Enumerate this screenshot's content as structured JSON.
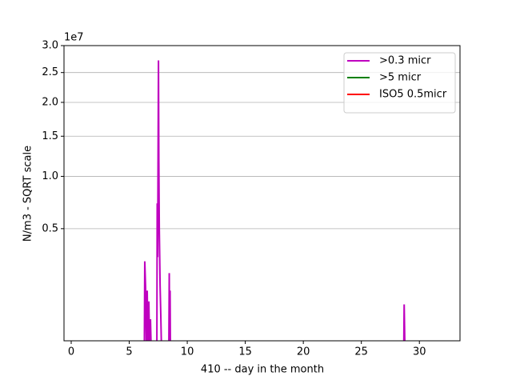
{
  "chart_data": {
    "type": "line",
    "xlabel": "410 -- day in the month",
    "ylabel": "N/m3 - SQRT scale",
    "offset_label": "1e7",
    "yscale": "sqrt",
    "grid": true,
    "legend": "upper right",
    "xlim": [
      -0.62,
      33.5
    ],
    "xticks": [
      0,
      5,
      10,
      15,
      20,
      25,
      30
    ],
    "ylim": [
      0.0063,
      3.0
    ],
    "yticks": [
      0.5,
      {
        "value": 1,
        "label": "1.0"
      },
      1.5,
      {
        "value": 2,
        "label": "2.0"
      },
      2.5,
      {
        "value": 3,
        "label": "3.0"
      }
    ],
    "series": [
      {
        "name": ">0.3 micr",
        "color": "#bf00bf",
        "x": [
          6.3,
          6.34,
          6.41,
          6.48,
          6.55,
          6.62,
          6.69,
          6.76,
          6.83,
          6.9,
          7.38,
          7.41,
          7.45,
          7.52,
          7.55,
          7.59,
          7.66,
          7.72,
          7.79,
          8.41,
          8.45,
          8.48,
          8.52,
          8.55,
          28.65,
          28.69,
          28.76
        ],
        "values": [
          0,
          0.275,
          0.14,
          0,
          0.13,
          0,
          0.09,
          0,
          0.04,
          0,
          0,
          0.72,
          0.3,
          2.72,
          1.2,
          0.5,
          0.15,
          0.05,
          0,
          0,
          0.21,
          0,
          0.13,
          0,
          0,
          0.08,
          0
        ]
      },
      {
        "name": ">5 micr",
        "color": "#008000",
        "x": [],
        "values": []
      },
      {
        "name": "ISO5 0.5micr",
        "color": "#ff0000",
        "x": [],
        "values": []
      }
    ]
  }
}
